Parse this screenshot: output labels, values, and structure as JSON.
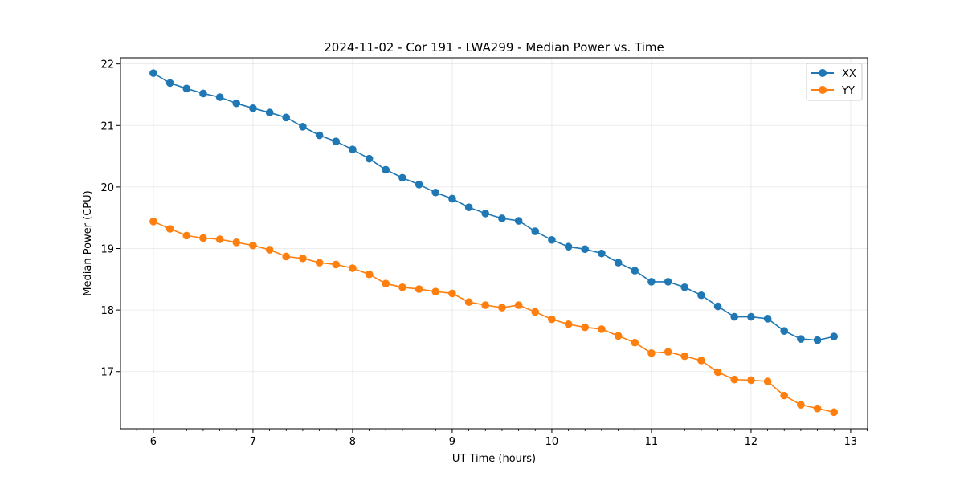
{
  "chart_data": {
    "type": "line",
    "title": "2024-11-02 - Cor 191 - LWA299 - Median Power vs. Time",
    "xlabel": "UT Time (hours)",
    "ylabel": "Median Power (CPU)",
    "xlim": [
      5.67,
      13.17
    ],
    "ylim": [
      16.07,
      22.1
    ],
    "xticks": [
      6,
      7,
      8,
      9,
      10,
      11,
      12,
      13
    ],
    "xtick_labels": [
      "6",
      "7",
      "8",
      "9",
      "10",
      "11",
      "12",
      "13"
    ],
    "yticks": [
      17,
      18,
      19,
      20,
      21,
      22
    ],
    "ytick_labels": [
      "17",
      "18",
      "19",
      "20",
      "21",
      "22"
    ],
    "grid": true,
    "legend_position": "top-right",
    "x": [
      6.0,
      6.167,
      6.333,
      6.5,
      6.667,
      6.833,
      7.0,
      7.167,
      7.333,
      7.5,
      7.667,
      7.833,
      8.0,
      8.167,
      8.333,
      8.5,
      8.667,
      8.833,
      9.0,
      9.167,
      9.333,
      9.5,
      9.667,
      9.833,
      10.0,
      10.167,
      10.333,
      10.5,
      10.667,
      10.833,
      11.0,
      11.167,
      11.333,
      11.5,
      11.667,
      11.833,
      12.0,
      12.167,
      12.333,
      12.5,
      12.667,
      12.833
    ],
    "series": [
      {
        "name": "XX",
        "color": "#1f77b4",
        "values": [
          21.85,
          21.69,
          21.6,
          21.52,
          21.46,
          21.36,
          21.28,
          21.21,
          21.13,
          20.98,
          20.84,
          20.74,
          20.61,
          20.46,
          20.28,
          20.15,
          20.04,
          19.91,
          19.81,
          19.67,
          19.57,
          19.49,
          19.45,
          19.28,
          19.14,
          19.03,
          18.99,
          18.92,
          18.77,
          18.64,
          18.46,
          18.46,
          18.37,
          18.24,
          18.06,
          17.89,
          17.89,
          17.86,
          17.66,
          17.53,
          17.51,
          17.57
        ]
      },
      {
        "name": "YY",
        "color": "#ff7f0e",
        "values": [
          19.44,
          19.32,
          19.21,
          19.17,
          19.15,
          19.1,
          19.05,
          18.98,
          18.87,
          18.84,
          18.77,
          18.74,
          18.68,
          18.58,
          18.43,
          18.37,
          18.34,
          18.3,
          18.27,
          18.13,
          18.08,
          18.04,
          18.08,
          17.97,
          17.85,
          17.77,
          17.72,
          17.69,
          17.58,
          17.47,
          17.3,
          17.32,
          17.25,
          17.18,
          16.99,
          16.87,
          16.86,
          16.84,
          16.61,
          16.46,
          16.4,
          16.34
        ]
      }
    ]
  }
}
